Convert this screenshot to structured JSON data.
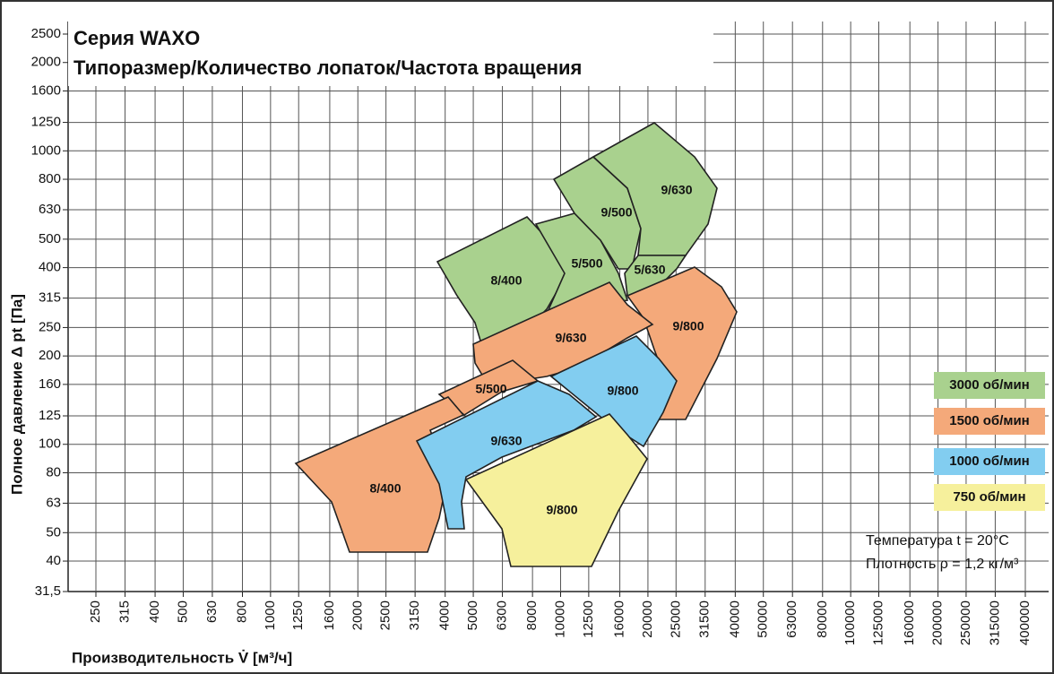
{
  "chart_data": {
    "type": "performance-map",
    "title": "Серия WAXO",
    "subtitle": "Типоразмер/Количество лопаток/Частота вращения",
    "x_label": "Производительность V̇ [м³/ч]",
    "y_label": "Полное давление Δ pt [Па]",
    "log_x": true,
    "log_y": true,
    "grid": true,
    "xlim": [
      250,
      400000
    ],
    "ylim": [
      31.5,
      2500
    ],
    "xticks": [
      250,
      315,
      400,
      500,
      630,
      800,
      1000,
      1250,
      1600,
      2000,
      2500,
      3150,
      4000,
      5000,
      6300,
      8000,
      10000,
      12500,
      16000,
      20000,
      25000,
      31500,
      40000,
      50000,
      63000,
      80000,
      100000,
      125000,
      160000,
      200000,
      250000,
      315000,
      400000
    ],
    "yticks": [
      {
        "value": 31.5,
        "label": "31,5"
      },
      40,
      50,
      63,
      80,
      100,
      125,
      160,
      200,
      250,
      315,
      400,
      500,
      630,
      800,
      1000,
      1250,
      1600,
      2000,
      2500
    ],
    "series": [
      {
        "name": "3000 об/мин",
        "color": "#a9d18e",
        "regions": [
          "8/400",
          "5/500",
          "9/500",
          "9/630",
          "5/630"
        ]
      },
      {
        "name": "1500 об/мин",
        "color": "#f4a97a",
        "regions": [
          "9/800",
          "9/630",
          "5/500",
          "8/400"
        ]
      },
      {
        "name": "1000 об/мин",
        "color": "#82cdf0",
        "regions": [
          "9/630",
          "9/800"
        ]
      },
      {
        "name": "750 об/мин",
        "color": "#f6f09c",
        "regions": [
          "9/800"
        ]
      }
    ],
    "annotations": [
      "Температура t = 20°C",
      "Плотность ρ = 1,2 кг/м³"
    ]
  }
}
